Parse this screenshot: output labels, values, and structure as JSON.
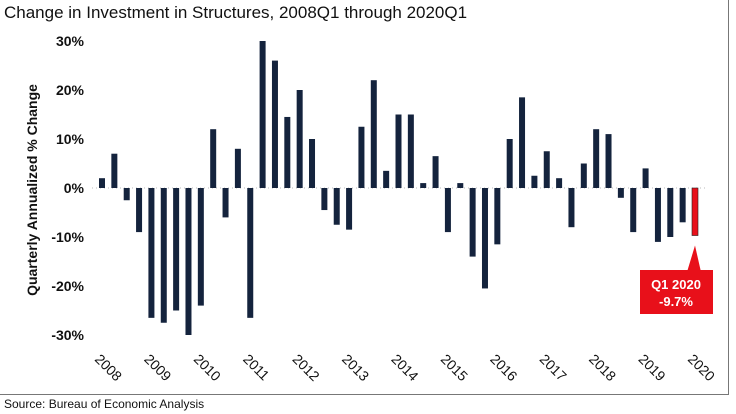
{
  "chart_data": {
    "type": "bar",
    "title": "Change in Investment in Structures, 2008Q1 through 2020Q1",
    "ylabel": "Quarterly Annualized % Change",
    "xlabel": "",
    "ylim": [
      -30,
      30
    ],
    "yticks": [
      30,
      20,
      10,
      0,
      -10,
      -20,
      -30
    ],
    "ytick_labels": [
      "30%",
      "20%",
      "10%",
      "0%",
      "-10%",
      "-20%",
      "-30%"
    ],
    "year_labels": [
      "2008",
      "2009",
      "2010",
      "2011",
      "2012",
      "2013",
      "2014",
      "2015",
      "2016",
      "2017",
      "2018",
      "2019",
      "2020"
    ],
    "values": [
      2,
      7,
      -2.5,
      -9,
      -26.5,
      -27.5,
      -25,
      -30,
      -24,
      12,
      -6,
      8,
      -26.5,
      30,
      26,
      14.5,
      20,
      10,
      -4.5,
      -7.5,
      -8.5,
      12.5,
      22,
      3.5,
      15,
      15,
      1,
      6.5,
      -9,
      1,
      -14,
      -20.5,
      -11.5,
      10,
      18.5,
      2.5,
      7.5,
      2,
      -8,
      5,
      12,
      11,
      -2,
      -9,
      4,
      -11,
      -10,
      -7,
      -9.7
    ],
    "bar_color": "#14233d",
    "highlight_color": "#e8101a",
    "annotation": {
      "line1": "Q1 2020",
      "line2": "-9.7%"
    },
    "grid": false,
    "legend": "none"
  },
  "source": "Source: Bureau of Economic Analysis"
}
